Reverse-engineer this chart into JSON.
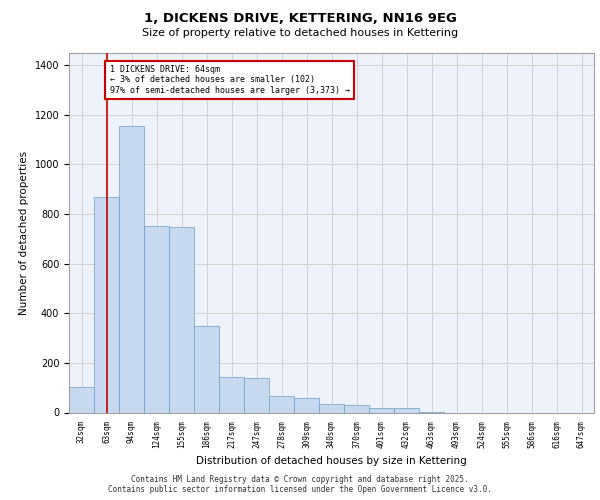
{
  "title1": "1, DICKENS DRIVE, KETTERING, NN16 9EG",
  "title2": "Size of property relative to detached houses in Kettering",
  "xlabel": "Distribution of detached houses by size in Kettering",
  "ylabel": "Number of detached properties",
  "categories": [
    "32sqm",
    "63sqm",
    "94sqm",
    "124sqm",
    "155sqm",
    "186sqm",
    "217sqm",
    "247sqm",
    "278sqm",
    "309sqm",
    "340sqm",
    "370sqm",
    "401sqm",
    "432sqm",
    "463sqm",
    "493sqm",
    "524sqm",
    "555sqm",
    "586sqm",
    "616sqm",
    "647sqm"
  ],
  "values": [
    102,
    868,
    1155,
    750,
    748,
    350,
    145,
    140,
    65,
    60,
    35,
    30,
    18,
    18,
    4,
    0,
    0,
    0,
    0,
    0,
    0
  ],
  "bar_color": "#c6d9ee",
  "bar_edge_color": "#6a9fc8",
  "grid_color": "#cccccc",
  "bg_color": "#eef2fb",
  "redline_x": 1,
  "ylim": [
    0,
    1450
  ],
  "yticks": [
    0,
    200,
    400,
    600,
    800,
    1000,
    1200,
    1400
  ],
  "annotation_text": "1 DICKENS DRIVE: 64sqm\n← 3% of detached houses are smaller (102)\n97% of semi-detached houses are larger (3,373) →",
  "footer1": "Contains HM Land Registry data © Crown copyright and database right 2025.",
  "footer2": "Contains public sector information licensed under the Open Government Licence v3.0."
}
